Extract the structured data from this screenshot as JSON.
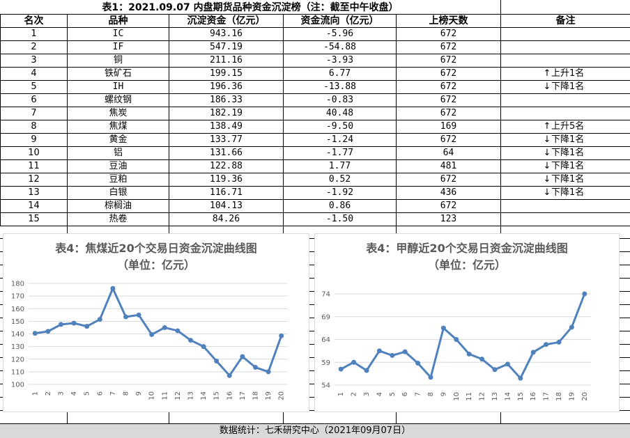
{
  "title": "表1：2021.09.07 内盘期货品种资金沉淀榜（注：截至中午收盘）",
  "headers": [
    "名次",
    "品种",
    "沉淀资金（亿元）",
    "资金流向（亿元）",
    "上榜天数",
    "备注"
  ],
  "rows": [
    {
      "rank": "1",
      "name": "IC",
      "fund": "943.16",
      "flow": "-5.96",
      "days": "672",
      "arrow": "",
      "note": ""
    },
    {
      "rank": "2",
      "name": "IF",
      "fund": "547.19",
      "flow": "-54.88",
      "days": "672",
      "arrow": "",
      "note": ""
    },
    {
      "rank": "3",
      "name": "铜",
      "fund": "211.16",
      "flow": "-3.93",
      "days": "672",
      "arrow": "",
      "note": ""
    },
    {
      "rank": "4",
      "name": "铁矿石",
      "fund": "199.15",
      "flow": "6.77",
      "days": "672",
      "arrow": "↑",
      "note": "上升1名"
    },
    {
      "rank": "5",
      "name": "IH",
      "fund": "196.36",
      "flow": "-13.88",
      "days": "672",
      "arrow": "↓",
      "note": "下降1名"
    },
    {
      "rank": "6",
      "name": "螺纹钢",
      "fund": "186.33",
      "flow": "-0.83",
      "days": "672",
      "arrow": "",
      "note": ""
    },
    {
      "rank": "7",
      "name": "焦炭",
      "fund": "182.19",
      "flow": "40.48",
      "days": "672",
      "arrow": "",
      "note": ""
    },
    {
      "rank": "8",
      "name": "焦煤",
      "fund": "138.49",
      "flow": "-9.50",
      "days": "169",
      "arrow": "↑",
      "note": "上升5名"
    },
    {
      "rank": "9",
      "name": "黄金",
      "fund": "133.77",
      "flow": "-1.24",
      "days": "672",
      "arrow": "↓",
      "note": "下降1名"
    },
    {
      "rank": "10",
      "name": "铝",
      "fund": "131.66",
      "flow": "-1.77",
      "days": "64",
      "arrow": "↓",
      "note": "下降1名"
    },
    {
      "rank": "11",
      "name": "豆油",
      "fund": "122.88",
      "flow": "1.77",
      "days": "481",
      "arrow": "↓",
      "note": "下降1名"
    },
    {
      "rank": "12",
      "name": "豆粕",
      "fund": "119.36",
      "flow": "0.52",
      "days": "672",
      "arrow": "↓",
      "note": "下降1名"
    },
    {
      "rank": "13",
      "name": "白银",
      "fund": "116.71",
      "flow": "-1.92",
      "days": "436",
      "arrow": "↓",
      "note": "下降1名"
    },
    {
      "rank": "14",
      "name": "棕榈油",
      "fund": "104.13",
      "flow": "0.86",
      "days": "672",
      "arrow": "",
      "note": ""
    },
    {
      "rank": "15",
      "name": "热卷",
      "fund": "84.26",
      "flow": "-1.50",
      "days": "123",
      "arrow": "",
      "note": ""
    }
  ],
  "chart_data": [
    {
      "type": "line",
      "title": "表4：焦煤近20个交易日资金沉淀曲线图",
      "subtitle": "（单位：亿元）",
      "x": [
        1,
        2,
        3,
        4,
        5,
        6,
        7,
        8,
        9,
        10,
        11,
        12,
        13,
        14,
        15,
        16,
        17,
        18,
        19,
        20
      ],
      "values": [
        140.5,
        142,
        147.5,
        148.5,
        146,
        151.5,
        176,
        153.5,
        155,
        139.5,
        145,
        142.5,
        135,
        130,
        118.5,
        107,
        122,
        113.5,
        110,
        138.5
      ],
      "ylim": [
        100,
        180
      ],
      "yticks": [
        100,
        110,
        120,
        130,
        140,
        150,
        160,
        170,
        180
      ],
      "grid": true,
      "color": "#4f81bd"
    },
    {
      "type": "line",
      "title": "表4：甲醇近20个交易日资金沉淀曲线图",
      "subtitle": "（单位：亿元）",
      "x": [
        1,
        2,
        3,
        4,
        5,
        6,
        7,
        8,
        9,
        10,
        11,
        12,
        13,
        14,
        15,
        16,
        17,
        18,
        19,
        20
      ],
      "values": [
        57.5,
        59,
        57.2,
        61.5,
        60.5,
        61.3,
        58.8,
        55.7,
        66.5,
        64,
        60.8,
        59.7,
        57.4,
        58.6,
        55.5,
        61.2,
        62.9,
        63.4,
        66.7,
        74
      ],
      "ylim": [
        54,
        74
      ],
      "yticks": [
        54,
        59,
        64,
        69,
        74
      ],
      "grid": true,
      "color": "#4f81bd"
    }
  ],
  "footer": "数据统计：七禾研究中心（2021年09月07日）"
}
